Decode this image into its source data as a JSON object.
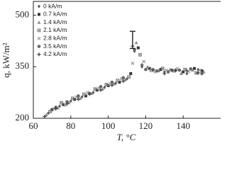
{
  "chart_data": {
    "type": "scatter",
    "xlabel": "T, °C",
    "ylabel": "q, kW/m²",
    "xlim": [
      60,
      160
    ],
    "ylim": [
      200,
      540
    ],
    "xticks": [
      60,
      80,
      100,
      120,
      140
    ],
    "yticks": [
      200,
      350,
      500
    ],
    "legend": "upper left",
    "series": [
      {
        "name": "0 kA/m",
        "color": "#555555",
        "marker": "diamond",
        "x": [
          68,
          74,
          80,
          86,
          92,
          98,
          104,
          110,
          114,
          118,
          124,
          130,
          136,
          142,
          148
        ],
        "values": [
          215,
          235,
          250,
          262,
          275,
          290,
          302,
          315,
          395,
          350,
          340,
          335,
          338,
          330,
          342
        ]
      },
      {
        "name": "0.7 kA/m",
        "color": "#333333",
        "marker": "square",
        "x": [
          70,
          76,
          82,
          88,
          94,
          100,
          106,
          112,
          116,
          122,
          128,
          134,
          140,
          146,
          150
        ],
        "values": [
          225,
          240,
          255,
          265,
          282,
          295,
          305,
          330,
          405,
          345,
          342,
          340,
          335,
          345,
          338
        ]
      },
      {
        "name": "1.4 kA/m",
        "color": "#888888",
        "marker": "triangle",
        "x": [
          67,
          73,
          79,
          85,
          91,
          97,
          103,
          109,
          115,
          121,
          127,
          133,
          139,
          145,
          151
        ],
        "values": [
          210,
          230,
          245,
          258,
          272,
          285,
          300,
          312,
          420,
          350,
          338,
          342,
          330,
          340,
          335
        ]
      },
      {
        "name": "2.1 kA/m",
        "color": "#777777",
        "marker": "xsquare",
        "x": [
          69,
          75,
          81,
          87,
          93,
          99,
          105,
          111,
          117,
          123,
          129,
          135,
          141,
          147
        ],
        "values": [
          220,
          245,
          258,
          270,
          285,
          298,
          310,
          320,
          385,
          340,
          345,
          338,
          342,
          332
        ]
      },
      {
        "name": "2.8 kA/m",
        "color": "#999999",
        "marker": "cross",
        "x": [
          71,
          77,
          83,
          89,
          95,
          101,
          107,
          113,
          119,
          125,
          131,
          137,
          143,
          149
        ],
        "values": [
          228,
          238,
          262,
          275,
          288,
          300,
          315,
          360,
          365,
          335,
          340,
          345,
          336,
          340
        ]
      },
      {
        "name": "3.5 kA/m",
        "color": "#666666",
        "marker": "circle",
        "x": [
          72,
          78,
          84,
          90,
          96,
          102,
          108,
          114,
          120,
          126,
          132,
          138,
          144,
          150
        ],
        "values": [
          232,
          248,
          265,
          272,
          292,
          305,
          318,
          400,
          342,
          338,
          335,
          340,
          344,
          330
        ]
      },
      {
        "name": "4.2 kA/m",
        "color": "#444444",
        "marker": "plus",
        "x": [
          66,
          72,
          78,
          84,
          90,
          96,
          102,
          108,
          113,
          118,
          124,
          130,
          136,
          142,
          148
        ],
        "values": [
          205,
          228,
          242,
          255,
          270,
          282,
          296,
          308,
          410,
          355,
          342,
          330,
          340,
          338,
          332
        ]
      }
    ],
    "error_bar": {
      "x": 113,
      "value": 428,
      "error": 25,
      "color": "#222222"
    }
  }
}
